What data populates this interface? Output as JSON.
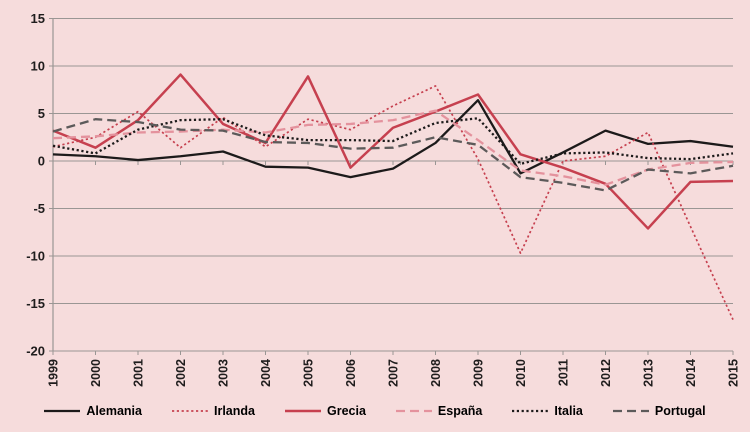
{
  "chart_data": {
    "type": "line",
    "x": [
      1999,
      2000,
      2001,
      2002,
      2003,
      2004,
      2005,
      2006,
      2007,
      2008,
      2009,
      2010,
      2011,
      2012,
      2013,
      2014,
      2015
    ],
    "series": [
      {
        "name": "Alemania",
        "color": "#1c1a1a",
        "dash": "",
        "width": 2.3,
        "values": [
          0.7,
          0.5,
          0.1,
          0.5,
          1.0,
          -0.6,
          -0.7,
          -1.7,
          -0.8,
          1.9,
          6.4,
          -1.3,
          0.9,
          3.2,
          1.8,
          2.1,
          1.5
        ]
      },
      {
        "name": "Irlanda",
        "color": "#c6404f",
        "dash": "2.2 2.6",
        "width": 1.7,
        "values": [
          1.5,
          2.5,
          5.2,
          1.4,
          4.6,
          1.5,
          4.4,
          3.3,
          5.8,
          7.9,
          0.2,
          -9.7,
          0.0,
          0.5,
          3.0,
          -6.9,
          -16.7
        ]
      },
      {
        "name": "Grecia",
        "color": "#c6404f",
        "dash": "",
        "width": 2.5,
        "values": [
          3.2,
          1.4,
          4.3,
          9.1,
          3.9,
          1.9,
          8.9,
          -0.7,
          3.5,
          5.2,
          7.0,
          0.7,
          -0.7,
          -2.4,
          -7.1,
          -2.2,
          -2.1
        ]
      },
      {
        "name": "España",
        "color": "#e4929d",
        "dash": "9 5",
        "width": 2.3,
        "values": [
          2.4,
          2.6,
          3.0,
          3.1,
          3.3,
          3.0,
          3.8,
          3.9,
          4.3,
          5.3,
          2.2,
          -1.0,
          -1.6,
          -2.5,
          -0.9,
          -0.2,
          -0.1
        ]
      },
      {
        "name": "Italia",
        "color": "#1c1a1a",
        "dash": "2.2 2.6",
        "width": 2.3,
        "values": [
          1.6,
          0.8,
          3.3,
          4.3,
          4.4,
          2.7,
          2.2,
          2.2,
          2.1,
          4.0,
          4.5,
          -0.3,
          0.8,
          0.9,
          0.3,
          0.2,
          0.8
        ]
      },
      {
        "name": "Portugal",
        "color": "#5c5a5a",
        "dash": "9 5",
        "width": 2.3,
        "values": [
          3.1,
          4.4,
          4.1,
          3.3,
          3.2,
          2.0,
          1.9,
          1.3,
          1.4,
          2.5,
          1.7,
          -1.7,
          -2.3,
          -3.1,
          -0.9,
          -1.3,
          -0.5
        ]
      }
    ],
    "yticks": [
      15,
      10,
      5,
      0,
      -5,
      -10,
      -15,
      -20
    ],
    "ylim": [
      -20,
      15
    ],
    "grid": true,
    "legend_position": "bottom",
    "title": "",
    "xlabel": "",
    "ylabel": ""
  },
  "styles": {
    "background": "#f6dcdc",
    "grid_color": "#9a9694",
    "axis_color": "#9a9694",
    "text_color": "#1f1d1d"
  }
}
